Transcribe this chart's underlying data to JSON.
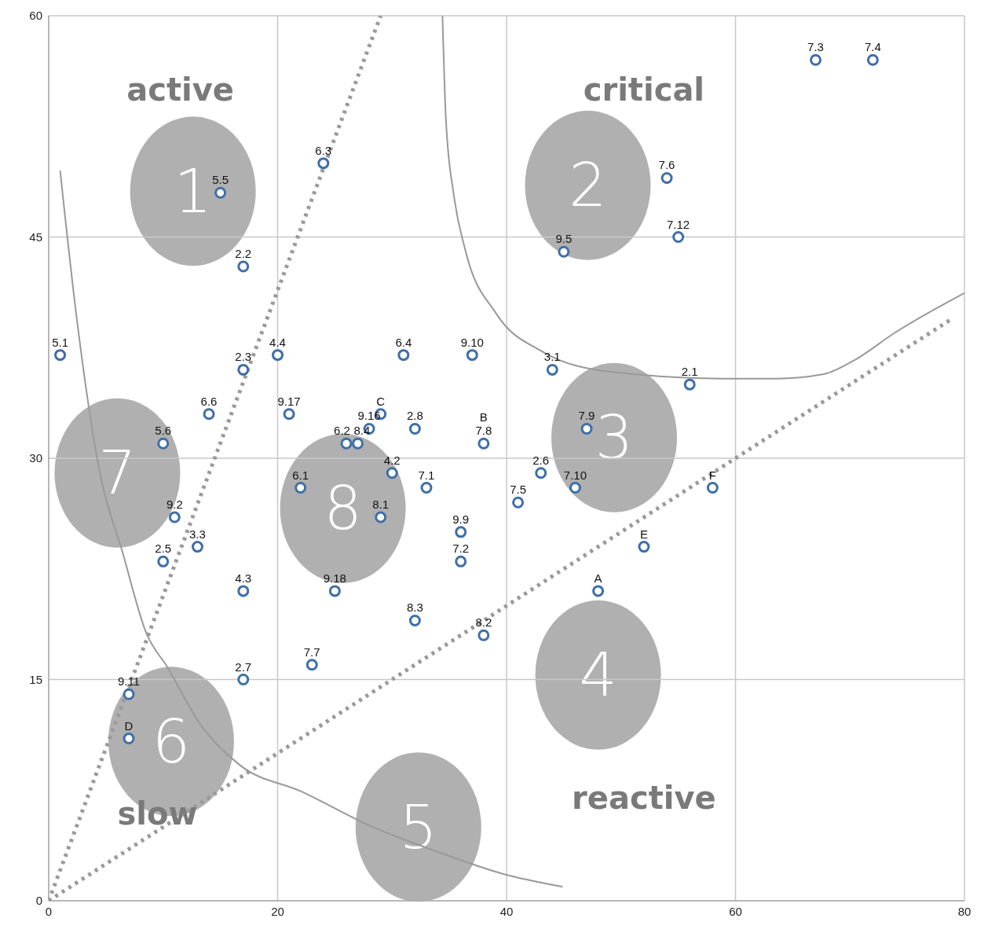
{
  "chart_data": {
    "type": "scatter",
    "xlim": [
      0,
      80
    ],
    "ylim": [
      0,
      60
    ],
    "xticks": [
      0,
      20,
      40,
      60,
      80
    ],
    "yticks": [
      0,
      15,
      30,
      45,
      60
    ],
    "grid": true,
    "series": [
      {
        "type": "line",
        "color": "#999999",
        "line_style": "solid",
        "x": [
          1,
          2.4,
          4.4,
          6.5,
          8.5,
          10.4,
          13.3,
          16.7,
          22.1,
          28.3,
          33.7,
          39.8,
          44.9
        ],
        "values": [
          49.5,
          39.8,
          29.3,
          23.5,
          18.2,
          15.8,
          11.9,
          9.2,
          7.4,
          5,
          3.4,
          1.8,
          0.95
        ]
      },
      {
        "type": "line",
        "color": "#999999",
        "line_style": "solid",
        "x": [
          34.4,
          34.7,
          35.4,
          36.4,
          39.1,
          43.2,
          48.7,
          58.9,
          63.6,
          67.7,
          70.5,
          73.9,
          80
        ],
        "values": [
          60,
          53,
          47.8,
          44.1,
          39.8,
          37.2,
          35.9,
          35.4,
          35.4,
          35.7,
          36.7,
          38.5,
          41.2
        ]
      },
      {
        "type": "line",
        "color": "#9a9a9a",
        "line_style": "dotted",
        "x": [
          0,
          29
        ],
        "values": [
          0,
          60
        ]
      },
      {
        "type": "line",
        "color": "#9a9a9a",
        "line_style": "dotted",
        "x": [
          0,
          79
        ],
        "values": [
          0,
          39.5
        ]
      },
      {
        "color": "#3e6fa8",
        "marker": "circle",
        "x": [
          1,
          15,
          24,
          17,
          17,
          20,
          31,
          37,
          44,
          56,
          14,
          21,
          29,
          28,
          32,
          26,
          27,
          38,
          10,
          47,
          30,
          43,
          22,
          33,
          46,
          58,
          41,
          29,
          11,
          36,
          13,
          52,
          10,
          36,
          17,
          25,
          48,
          32,
          38,
          23,
          17,
          7,
          7,
          45,
          54,
          55,
          67,
          72
        ],
        "values": [
          37,
          48,
          50,
          43,
          36,
          37,
          37,
          37,
          36,
          35,
          33,
          33,
          33,
          32,
          32,
          31,
          31,
          31,
          31,
          32,
          29,
          29,
          28,
          28,
          28,
          28,
          27,
          26,
          26,
          25,
          24,
          24,
          23,
          23,
          21,
          21,
          21,
          19,
          18,
          16,
          15,
          14,
          11,
          44,
          49,
          45,
          57,
          57
        ]
      }
    ],
    "annotations": [
      "active",
      "critical",
      "slow",
      "reactive",
      "1",
      "2",
      "3",
      "4",
      "5",
      "6",
      "7",
      "8",
      {
        "text": "5.1",
        "x": 1,
        "y": 37
      },
      {
        "text": "5.5",
        "x": 15,
        "y": 48
      },
      {
        "text": "6.3",
        "x": 24,
        "y": 50
      },
      {
        "text": "2.2",
        "x": 17,
        "y": 43
      },
      {
        "text": "2.3",
        "x": 17,
        "y": 36
      },
      {
        "text": "4.4",
        "x": 20,
        "y": 37
      },
      {
        "text": "6.4",
        "x": 31,
        "y": 37
      },
      {
        "text": "9.10",
        "x": 37,
        "y": 37
      },
      {
        "text": "3.1",
        "x": 44,
        "y": 36
      },
      {
        "text": "2.1",
        "x": 56,
        "y": 35
      },
      {
        "text": "6.6",
        "x": 14,
        "y": 33
      },
      {
        "text": "9.17",
        "x": 21,
        "y": 33
      },
      {
        "text": "C",
        "x": 29,
        "y": 33
      },
      {
        "text": "9.16",
        "x": 28,
        "y": 32
      },
      {
        "text": "2.8",
        "x": 32,
        "y": 32
      },
      {
        "text": "6.2",
        "x": 26,
        "y": 31
      },
      {
        "text": "8.4",
        "x": 27,
        "y": 31
      },
      {
        "text": "7.8",
        "x": 38,
        "y": 31
      },
      {
        "text": "B",
        "x": 38,
        "y": 31
      },
      {
        "text": "5.6",
        "x": 10,
        "y": 31
      },
      {
        "text": "7.9",
        "x": 47,
        "y": 32
      },
      {
        "text": "4.2",
        "x": 30,
        "y": 29
      },
      {
        "text": "2.6",
        "x": 43,
        "y": 29
      },
      {
        "text": "6.1",
        "x": 22,
        "y": 28
      },
      {
        "text": "7.1",
        "x": 33,
        "y": 28
      },
      {
        "text": "7.10",
        "x": 46,
        "y": 28
      },
      {
        "text": "F",
        "x": 58,
        "y": 28
      },
      {
        "text": "7.5",
        "x": 41,
        "y": 27
      },
      {
        "text": "8.1",
        "x": 29,
        "y": 26
      },
      {
        "text": "9.2",
        "x": 11,
        "y": 26
      },
      {
        "text": "9.9",
        "x": 36,
        "y": 25
      },
      {
        "text": "3.3",
        "x": 13,
        "y": 24
      },
      {
        "text": "E",
        "x": 52,
        "y": 24
      },
      {
        "text": "2.5",
        "x": 10,
        "y": 23
      },
      {
        "text": "7.2",
        "x": 36,
        "y": 23
      },
      {
        "text": "4.3",
        "x": 17,
        "y": 21
      },
      {
        "text": "9.18",
        "x": 25,
        "y": 21
      },
      {
        "text": "A",
        "x": 48,
        "y": 21
      },
      {
        "text": "8.3",
        "x": 32,
        "y": 19
      },
      {
        "text": "8.2",
        "x": 38,
        "y": 18
      },
      {
        "text": "7.7",
        "x": 23,
        "y": 16
      },
      {
        "text": "2.7",
        "x": 17,
        "y": 15
      },
      {
        "text": "9.11",
        "x": 7,
        "y": 14
      },
      {
        "text": "D",
        "x": 7,
        "y": 11
      },
      {
        "text": "9.5",
        "x": 45,
        "y": 44
      },
      {
        "text": "7.6",
        "x": 54,
        "y": 49
      },
      {
        "text": "7.12",
        "x": 55,
        "y": 45
      },
      {
        "text": "7.3",
        "x": 67,
        "y": 57
      },
      {
        "text": "7.4",
        "x": 72,
        "y": 57
      }
    ]
  }
}
